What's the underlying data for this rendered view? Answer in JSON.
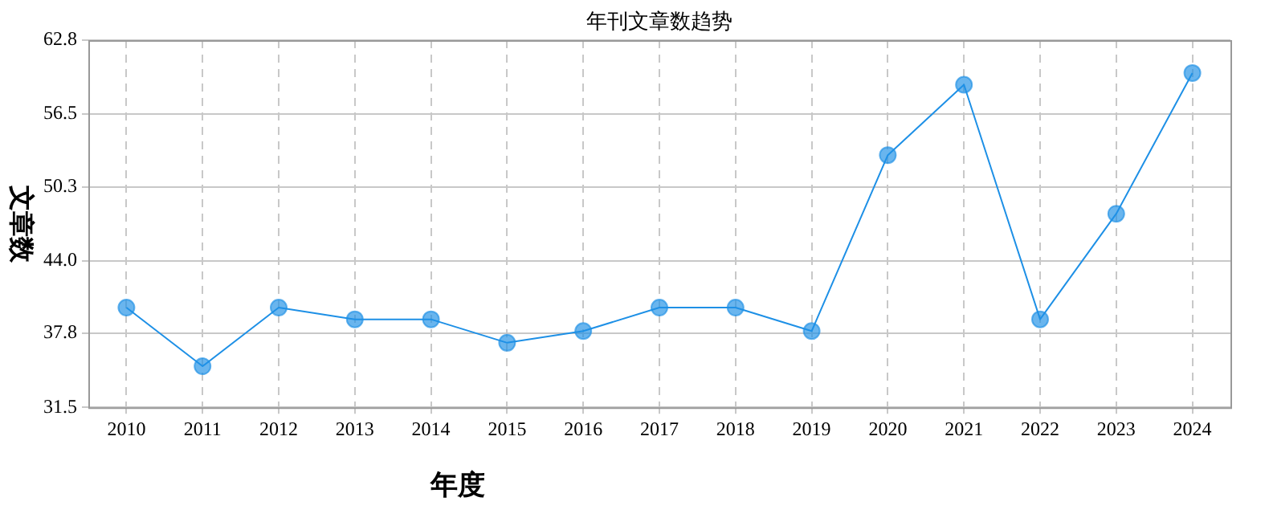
{
  "chart_data": {
    "type": "line",
    "title": "年刊文章数趋势",
    "xlabel": "年度",
    "ylabel": "文章数",
    "categories": [
      "2010",
      "2011",
      "2012",
      "2013",
      "2014",
      "2015",
      "2016",
      "2017",
      "2018",
      "2019",
      "2020",
      "2021",
      "2022",
      "2023",
      "2024"
    ],
    "series": [
      {
        "color": "#1e90e6",
        "values": [
          40,
          35,
          40,
          39,
          39,
          37,
          38,
          40,
          40,
          38,
          53,
          59,
          39,
          48,
          60
        ]
      }
    ],
    "ylim": [
      31.5,
      62.8
    ],
    "yticks": [
      31.5,
      37.8,
      {
        "value": 44,
        "label": "44.0"
      },
      50.3,
      56.5,
      62.8
    ],
    "grid": true,
    "legend": false,
    "marker": "circle",
    "line_style": "solid"
  }
}
